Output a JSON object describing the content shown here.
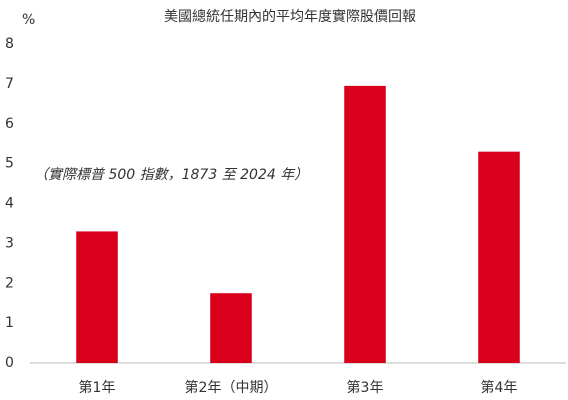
{
  "chart_data": {
    "type": "bar",
    "title": "美國總統任期內的平均年度實際股價回報",
    "y_label": "%",
    "annotation": "（實際標普 500 指數，1873 至 2024 年）",
    "categories": [
      "第1年",
      "第2年（中期）",
      "第3年",
      "第4年"
    ],
    "values": [
      3.3,
      1.75,
      6.95,
      5.3
    ],
    "color": "#d9001b",
    "ylim": [
      0,
      8
    ],
    "yticks": [
      0,
      1,
      2,
      3,
      4,
      5,
      6,
      7,
      8
    ],
    "grid": false
  }
}
